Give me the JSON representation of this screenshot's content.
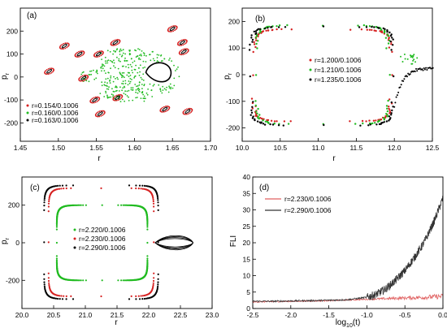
{
  "chart_data": [
    {
      "panel": "(a)",
      "type": "scatter",
      "xlabel": "r",
      "ylabel": "p_r",
      "xlim": [
        1.45,
        1.7
      ],
      "ylim": [
        -280,
        300
      ],
      "xticks": [
        1.45,
        1.5,
        1.55,
        1.6,
        1.65,
        1.7
      ],
      "xtick_labels": [
        "1.45",
        "1.50",
        "1.55",
        "1.60",
        "1.65",
        "1.70"
      ],
      "yticks": [
        -200,
        -100,
        0,
        100,
        200
      ],
      "ytick_labels": [
        "-200",
        "-100",
        "0",
        "100",
        "200"
      ],
      "legend_position": "bottom-left",
      "series": [
        {
          "name": "r=0.154/0.1006",
          "color": "#d62020",
          "marker": "dot"
        },
        {
          "name": "r=0.160/0.1006",
          "color": "#22bb22",
          "marker": "dot"
        },
        {
          "name": "r=0.163/0.1006",
          "color": "#000000",
          "marker": "dot"
        }
      ]
    },
    {
      "panel": "(b)",
      "type": "scatter",
      "xlabel": "r",
      "ylabel": "p_r",
      "xlim": [
        10.0,
        12.5
      ],
      "ylim": [
        -250,
        250
      ],
      "xticks": [
        10.0,
        10.5,
        11.0,
        11.5,
        12.0,
        12.5
      ],
      "xtick_labels": [
        "10.0",
        "10.5",
        "11.0",
        "11.5",
        "12.0",
        "12.5"
      ],
      "yticks": [
        -200,
        -100,
        0,
        100,
        200
      ],
      "ytick_labels": [
        "-200",
        "-100",
        "0",
        "100",
        "200"
      ],
      "legend_position": "center",
      "series": [
        {
          "name": "r=1.200/0.1006",
          "color": "#d62020",
          "marker": "dot"
        },
        {
          "name": "r=1.210/0.1006",
          "color": "#22bb22",
          "marker": "dot"
        },
        {
          "name": "r=1.235/0.1006",
          "color": "#000000",
          "marker": "dot"
        }
      ]
    },
    {
      "panel": "(c)",
      "type": "scatter",
      "xlabel": "r",
      "ylabel": "p_r",
      "xlim": [
        20.0,
        23.0
      ],
      "ylim": [
        -350,
        350
      ],
      "xticks": [
        20.0,
        20.5,
        21.0,
        21.5,
        22.0,
        22.5,
        23.0
      ],
      "xtick_labels": [
        "20.0",
        "20.5",
        "21.0",
        "21.5",
        "22.0",
        "22.5",
        "23.0"
      ],
      "yticks": [
        -200,
        0,
        200
      ],
      "ytick_labels": [
        "-200",
        "0",
        "200"
      ],
      "legend_position": "center",
      "series": [
        {
          "name": "r=2.220/0.1006",
          "color": "#22bb22",
          "marker": "dot"
        },
        {
          "name": "r=2.230/0.1006",
          "color": "#d62020",
          "marker": "dot"
        },
        {
          "name": "r=2.290/0.1006",
          "color": "#000000",
          "marker": "dot"
        }
      ]
    },
    {
      "panel": "(d)",
      "type": "line",
      "xlabel": "log10(t)",
      "xlabel_main": "log",
      "xlabel_sub": "10",
      "xlabel_tail": "(t)",
      "ylabel": "FLI",
      "xlim": [
        -2.5,
        0.0
      ],
      "ylim": [
        0,
        40
      ],
      "xticks": [
        -2.5,
        -2.0,
        -1.5,
        -1.0,
        -0.5,
        0.0
      ],
      "xtick_labels": [
        "-2.5",
        "-2.0",
        "-1.5",
        "-1.0",
        "-0.5",
        "0.0"
      ],
      "yticks": [
        0,
        5,
        10,
        15,
        20,
        25,
        30,
        35,
        40
      ],
      "ytick_labels": [
        "0",
        "5",
        "10",
        "15",
        "20",
        "25",
        "30",
        "35",
        "40"
      ],
      "legend_position": "top-left",
      "series": [
        {
          "name": "r=2.230/0.1006",
          "color": "#e06060",
          "x": [
            -2.5,
            -2.25,
            -2.0,
            -1.75,
            -1.5,
            -1.25,
            -1.0,
            -0.75,
            -0.5,
            -0.25,
            0.0
          ],
          "values": [
            2.0,
            2.1,
            2.2,
            2.3,
            2.4,
            2.6,
            2.8,
            3.0,
            3.2,
            3.4,
            3.7
          ]
        },
        {
          "name": "r=2.290/0.1006",
          "color": "#333333",
          "x": [
            -2.5,
            -2.25,
            -2.0,
            -1.75,
            -1.5,
            -1.25,
            -1.0,
            -0.875,
            -0.75,
            -0.625,
            -0.5,
            -0.375,
            -0.25,
            -0.125,
            0.0
          ],
          "values": [
            2.2,
            2.2,
            2.3,
            2.4,
            2.5,
            2.7,
            3.4,
            4.3,
            6.0,
            8.5,
            11.5,
            15.5,
            20.0,
            26.0,
            33.5
          ]
        }
      ]
    }
  ]
}
